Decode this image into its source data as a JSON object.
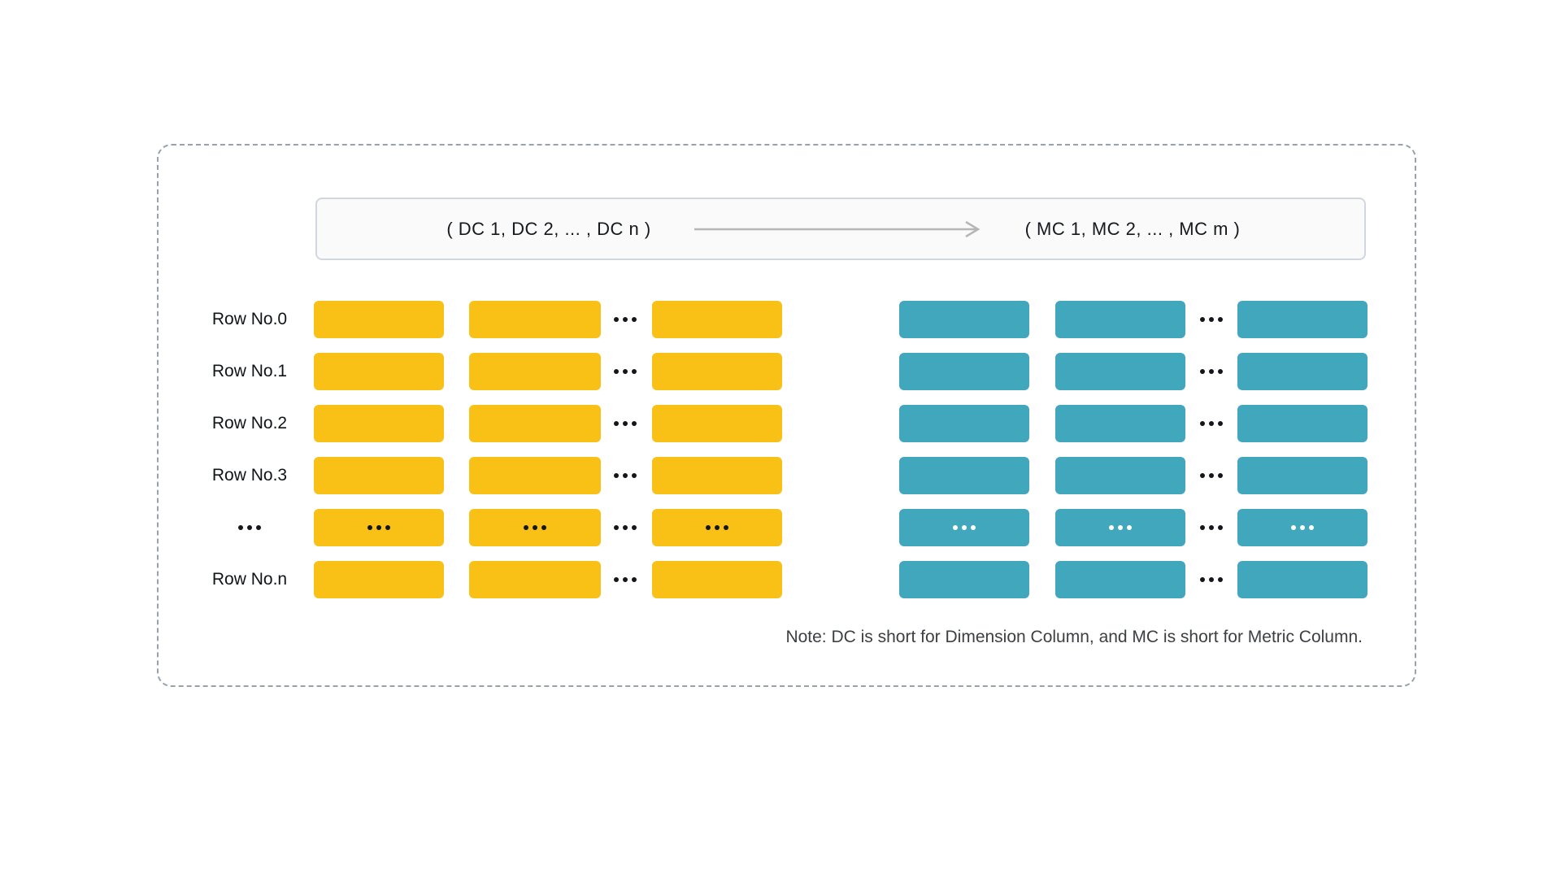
{
  "header": {
    "dimension_tuple": "( DC 1, DC 2, ... , DC n )",
    "metric_tuple": "( MC 1, MC 2, ... , MC m )"
  },
  "rows": [
    {
      "label": "Row No.0",
      "ellipsis": false
    },
    {
      "label": "Row No.1",
      "ellipsis": false
    },
    {
      "label": "Row No.2",
      "ellipsis": false
    },
    {
      "label": "Row No.3",
      "ellipsis": false
    },
    {
      "label": "...",
      "ellipsis": true
    },
    {
      "label": "Row No.n",
      "ellipsis": false
    }
  ],
  "columns": {
    "dimension_visible_count": 3,
    "metric_visible_count": 3,
    "column_ellipsis": "..."
  },
  "note": "Note: DC is short for Dimension Column, and MC is short for Metric Column.",
  "colors": {
    "dimension_block": "#F9C116",
    "metric_block": "#40A7BC",
    "frame_border": "#99A1B1",
    "arrow": "#B6B6B6",
    "header_bg": "#FAFAFB",
    "header_border": "#D2D6DE",
    "label_text": "#111418",
    "note_text": "#3D4043"
  }
}
